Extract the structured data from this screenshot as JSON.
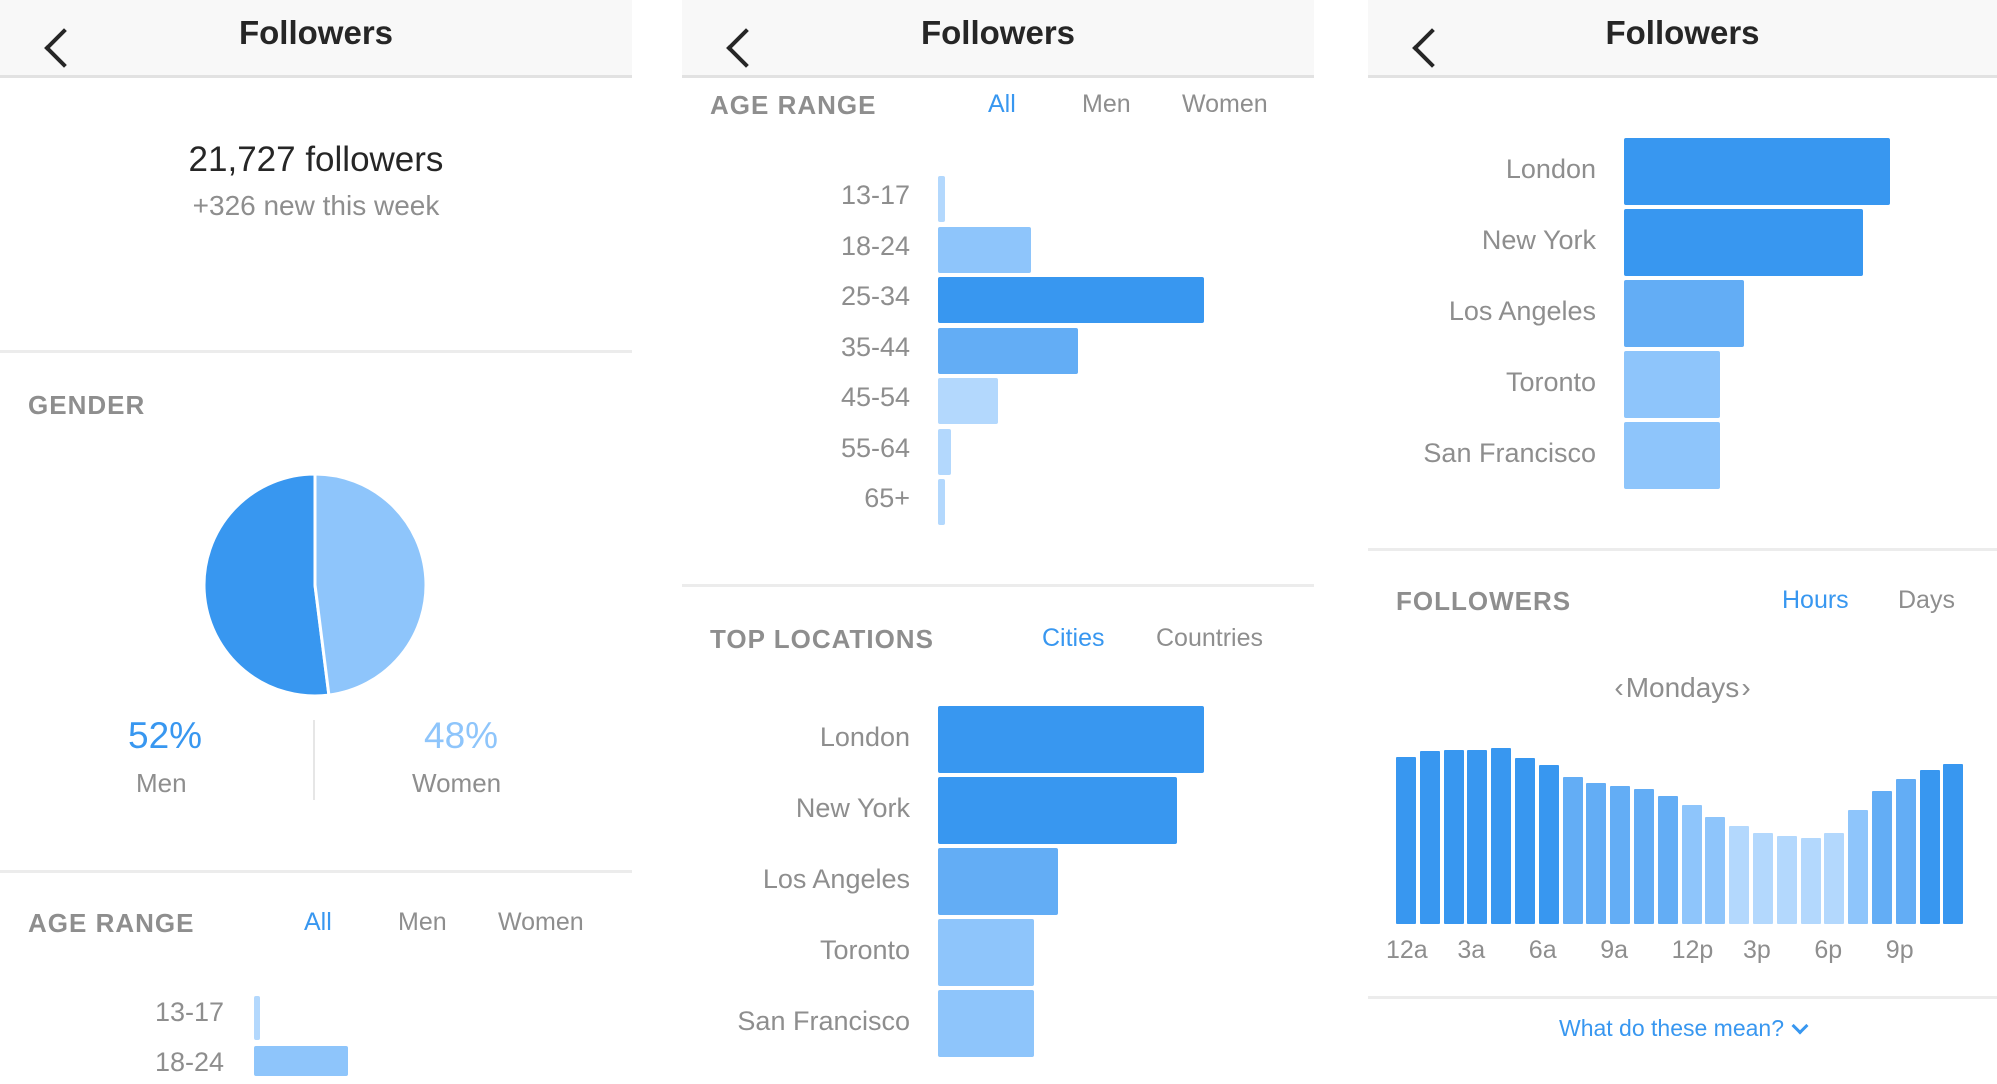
{
  "nav": {
    "title": "Followers"
  },
  "summary": {
    "count": "21,727 followers",
    "new": "+326 new this week"
  },
  "gender": {
    "label": "GENDER",
    "men_pct": "52%",
    "men_label": "Men",
    "women_pct": "48%",
    "women_label": "Women",
    "men_value": 52,
    "women_value": 48,
    "men_color": "#3897f0",
    "women_color": "#8ec5fb"
  },
  "age_range": {
    "label": "AGE RANGE",
    "tabs": [
      "All",
      "Men",
      "Women"
    ],
    "active_tab": "All",
    "categories": [
      "13-17",
      "18-24",
      "25-34",
      "35-44",
      "45-54",
      "55-64",
      "65+"
    ],
    "values": [
      1,
      14,
      40,
      21,
      9,
      2,
      1
    ]
  },
  "top_locations": {
    "label": "TOP LOCATIONS",
    "tabs": [
      "Cities",
      "Countries"
    ],
    "active_tab": "Cities",
    "cities": [
      "London",
      "New York",
      "Los Angeles",
      "Toronto",
      "San Francisco"
    ],
    "values": [
      100,
      90,
      45,
      36,
      36
    ]
  },
  "followers_activity": {
    "label": "FOLLOWERS",
    "tabs": [
      "Hours",
      "Days"
    ],
    "active_tab": "Hours",
    "day": "Mondays",
    "prev_icon": "chevron-left-icon",
    "next_icon": "chevron-right-icon",
    "x_labels": [
      "12a",
      "3a",
      "6a",
      "9a",
      "12p",
      "3p",
      "6p",
      "9p"
    ],
    "values": [
      97,
      100,
      101,
      101,
      102,
      96,
      92,
      85,
      82,
      80,
      78,
      74,
      69,
      62,
      57,
      53,
      51,
      50,
      53,
      66,
      77,
      84,
      89,
      93
    ]
  },
  "help": {
    "text": "What do these mean?"
  },
  "colors": {
    "accent": "#3897f0",
    "bar_dark": "#3897f0",
    "bar_mid": "#63adf5",
    "bar_light": "#8ec5fb",
    "bar_pale": "#b3d8fd"
  }
}
